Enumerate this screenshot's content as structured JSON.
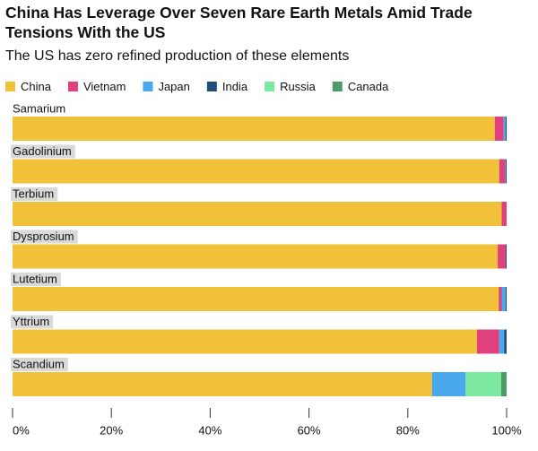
{
  "chart_data": {
    "type": "stacked-bar-horizontal",
    "title": "China Has Leverage Over Seven Rare Earth Metals Amid Trade Tensions With the US",
    "subtitle": "The US has zero refined production of these elements",
    "categories": [
      "Samarium",
      "Gadolinium",
      "Terbium",
      "Dysprosium",
      "Lutetium",
      "Yttrium",
      "Scandium"
    ],
    "series": [
      {
        "name": "China",
        "color": "#f2c13a",
        "values": [
          97.6,
          98.5,
          99.0,
          98.2,
          98.4,
          94.0,
          84.9
        ]
      },
      {
        "name": "Vietnam",
        "color": "#e0407c",
        "values": [
          1.8,
          1.2,
          1.0,
          1.6,
          0.6,
          4.5,
          0
        ]
      },
      {
        "name": "Japan",
        "color": "#4aa8ec",
        "values": [
          0.4,
          0.1,
          0,
          0,
          0.8,
          1.0,
          6.8
        ]
      },
      {
        "name": "India",
        "color": "#1f4e79",
        "values": [
          0.2,
          0.2,
          0,
          0.2,
          0.2,
          0.5,
          0
        ]
      },
      {
        "name": "Russia",
        "color": "#7ce8a0",
        "values": [
          0,
          0,
          0,
          0,
          0,
          0,
          7.2
        ]
      },
      {
        "name": "Canada",
        "color": "#4a9a6a",
        "values": [
          0,
          0,
          0,
          0,
          0,
          0,
          1.1
        ]
      }
    ],
    "xlim": [
      0,
      100
    ],
    "xticks": [
      {
        "value": 0,
        "label": "0%"
      },
      {
        "value": 20,
        "label": "20%"
      },
      {
        "value": 40,
        "label": "40%"
      },
      {
        "value": 60,
        "label": "60%"
      },
      {
        "value": 80,
        "label": "80%"
      },
      {
        "value": 100,
        "label": "100%"
      }
    ]
  }
}
